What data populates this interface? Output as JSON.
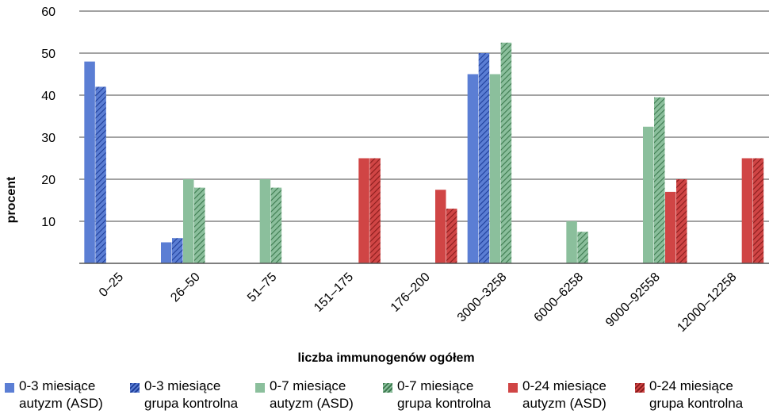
{
  "chart_data": {
    "type": "bar",
    "xlabel": "liczba immunogenów ogółem",
    "ylabel": "procent",
    "ylim": [
      0,
      60
    ],
    "yticks": [
      10,
      20,
      30,
      40,
      50,
      60
    ],
    "grid": true,
    "legend_position": "bottom",
    "categories": [
      "0–25",
      "26–50",
      "51–75",
      "151–175",
      "176–200",
      "3000–3258",
      "6000–6258",
      "9000–92558",
      "12000–12258"
    ],
    "series": [
      {
        "name": "0-3 miesiące\nautyzm (ASD)",
        "color": "#5b7ed4",
        "pattern": "solid",
        "values": [
          48,
          5,
          null,
          null,
          null,
          45,
          null,
          null,
          null
        ]
      },
      {
        "name": "0-3 miesiące\ngrupa kontrolna",
        "color": "#5b7ed4",
        "pattern": "hatched",
        "values": [
          42,
          6,
          null,
          null,
          null,
          50,
          null,
          null,
          null
        ]
      },
      {
        "name": "0-7 miesiące\nautyzm (ASD)",
        "color": "#8bbf9c",
        "pattern": "solid",
        "values": [
          null,
          20,
          20,
          null,
          null,
          45,
          10,
          32.5,
          null
        ]
      },
      {
        "name": "0-7 miesiące\ngrupa kontrolna",
        "color": "#6aa37a",
        "pattern": "hatched",
        "values": [
          null,
          18,
          18,
          null,
          null,
          52.5,
          7.5,
          39.5,
          null
        ]
      },
      {
        "name": "0-24 miesiące\nautyzm (ASD)",
        "color": "#d04545",
        "pattern": "solid",
        "values": [
          null,
          null,
          null,
          25,
          17.5,
          null,
          null,
          17,
          25
        ]
      },
      {
        "name": "0-24 miesiące\ngrupa kontrolna",
        "color": "#d04545",
        "pattern": "hatched",
        "values": [
          null,
          null,
          null,
          25,
          13,
          null,
          null,
          20,
          25
        ]
      }
    ]
  }
}
